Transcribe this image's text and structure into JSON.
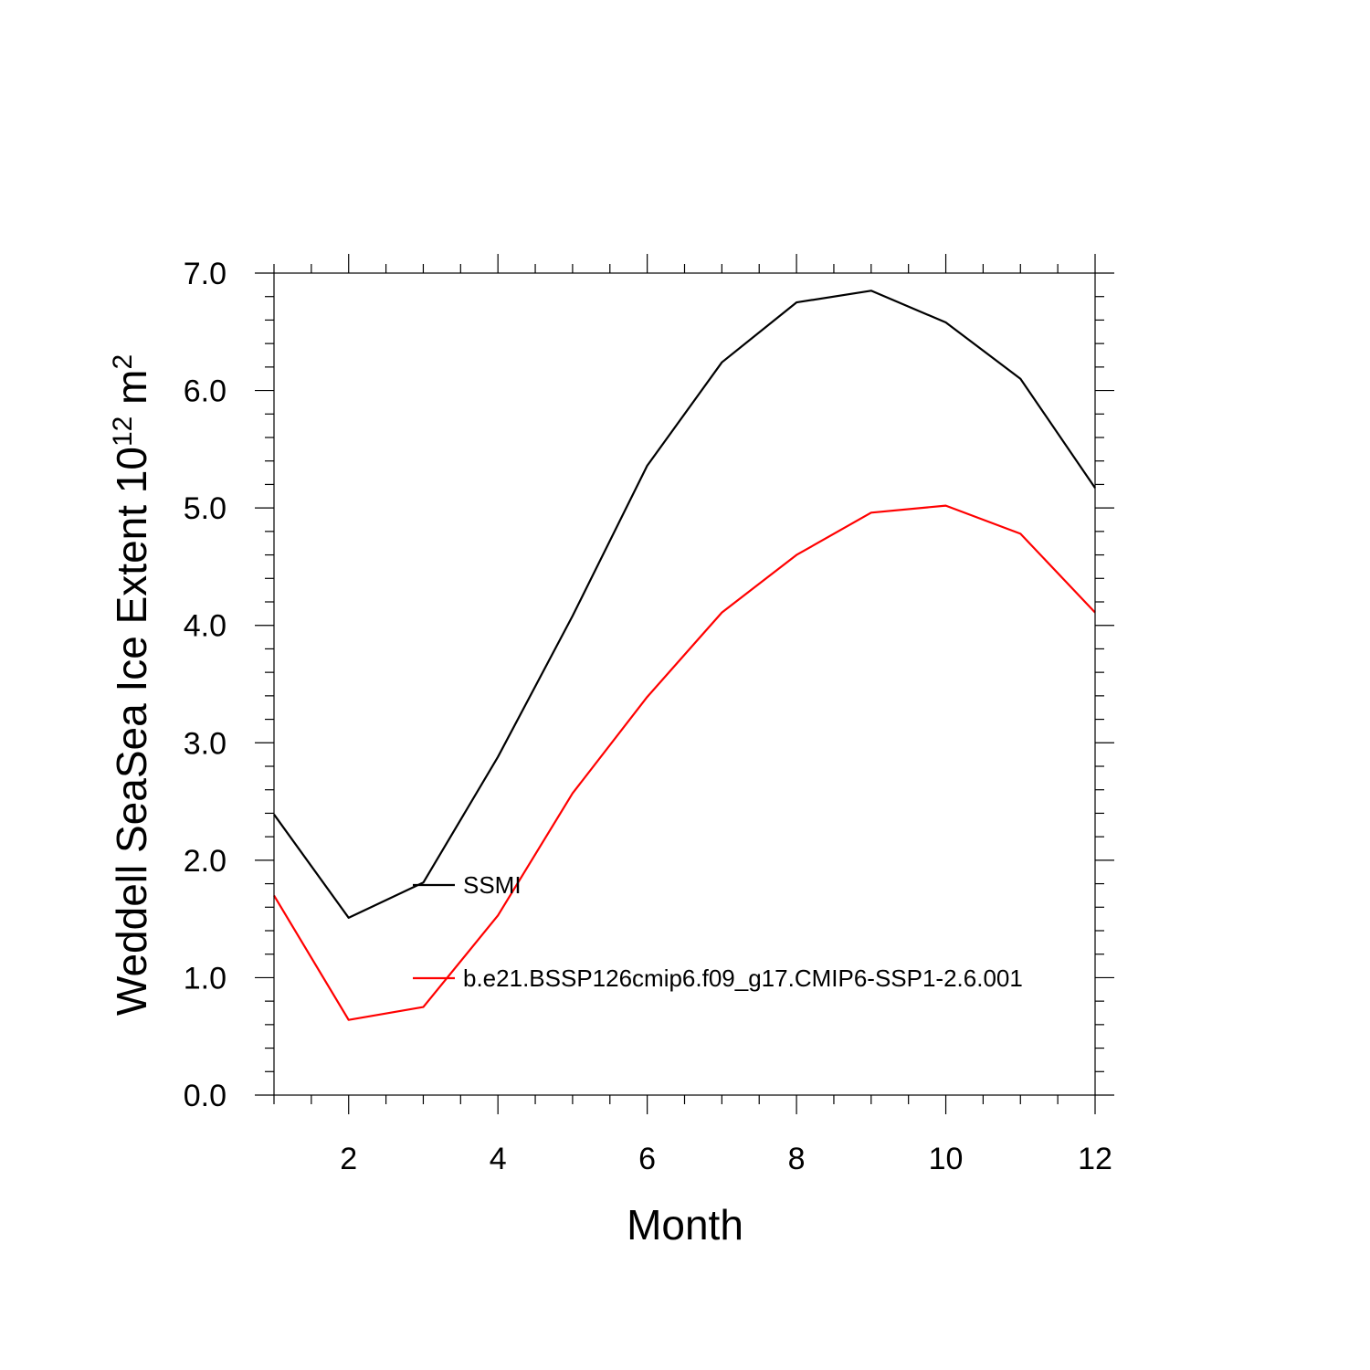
{
  "chart_data": {
    "type": "line",
    "title": "",
    "xlabel": "Month",
    "ylabel": {
      "text": "Weddell SeaSea Ice Extent 10",
      "superscript": "12",
      "unit": " m",
      "unit_superscript": "2"
    },
    "xlim": [
      1,
      12
    ],
    "ylim": [
      0,
      7
    ],
    "x_ticks": [
      2,
      4,
      6,
      8,
      10,
      12
    ],
    "x_tick_labels": [
      "2",
      "4",
      "6",
      "8",
      "10",
      "12"
    ],
    "y_ticks": [
      0,
      1,
      2,
      3,
      4,
      5,
      6,
      7
    ],
    "y_tick_labels": [
      "0.0",
      "1.0",
      "2.0",
      "3.0",
      "4.0",
      "5.0",
      "6.0",
      "7.0"
    ],
    "grid": false,
    "legend_position": "inside plot, left-center",
    "x": [
      1,
      2,
      3,
      4,
      5,
      6,
      7,
      8,
      9,
      10,
      11,
      12
    ],
    "series": [
      {
        "name": "SSMI",
        "color": "#000000",
        "values": [
          2.39,
          1.51,
          1.81,
          2.88,
          4.08,
          5.36,
          6.24,
          6.75,
          6.85,
          6.58,
          6.1,
          5.17
        ]
      },
      {
        "name": "b.e21.BSSP126cmip6.f09_g17.CMIP6-SSP1-2.6.001",
        "color": "#ff0000",
        "values": [
          1.7,
          0.64,
          0.75,
          1.53,
          2.57,
          3.39,
          4.11,
          4.6,
          4.96,
          5.02,
          4.78,
          4.11
        ]
      }
    ]
  }
}
